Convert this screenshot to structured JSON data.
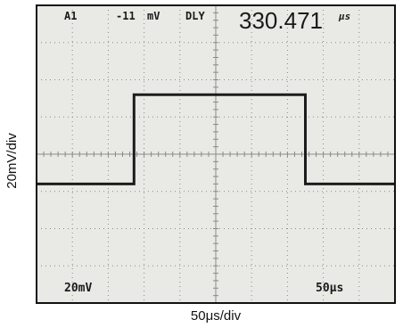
{
  "readout": {
    "channel": "A1",
    "level": "-11",
    "level_unit": "mV",
    "mode": "DLY",
    "delay_value": "330.471",
    "delay_unit": "μs",
    "volts_per_div": "20mV",
    "timebase": "50μs"
  },
  "axis_labels": {
    "y": "20mV/div",
    "x": "50μs/div"
  },
  "chart_data": {
    "type": "line",
    "title": "",
    "xlabel": "50μs/div",
    "ylabel": "20mV/div",
    "x_unit": "μs",
    "y_unit": "mV",
    "xlim": [
      0,
      500
    ],
    "ylim": [
      -80,
      80
    ],
    "grid": true,
    "divisions": {
      "x": 10,
      "y": 8
    },
    "series": [
      {
        "x": [
          0,
          136,
          136,
          375,
          375,
          500
        ],
        "values": [
          -16,
          -16,
          32,
          32,
          -16,
          -16
        ]
      }
    ]
  },
  "colors": {
    "screen": "#e9e9e5",
    "grid": "#8a8a86",
    "trace": "#1c1c1c",
    "frame": "#111111"
  }
}
